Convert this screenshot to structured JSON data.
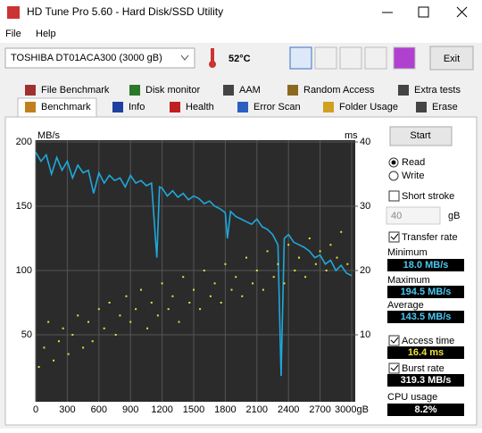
{
  "window": {
    "title": "HD Tune Pro 5.60 - Hard Disk/SSD Utility"
  },
  "menu": [
    "File",
    "Help"
  ],
  "toolbar": {
    "drive": "TOSHIBA DT01ACA300 (3000 gB)",
    "temperature": "52°C",
    "exit": "Exit"
  },
  "tabs": {
    "row1": [
      "File Benchmark",
      "Disk monitor",
      "AAM",
      "Random Access",
      "Extra tests"
    ],
    "row2": [
      "Benchmark",
      "Info",
      "Health",
      "Error Scan",
      "Folder Usage",
      "Erase"
    ]
  },
  "chart_data": {
    "type": "line",
    "y_unit": "MB/s",
    "y2_unit": "ms",
    "xlim": [
      0,
      3000
    ],
    "xticks": [
      0,
      300,
      600,
      900,
      1200,
      1500,
      1800,
      2100,
      2400,
      2700,
      {
        "value": 3000,
        "label": "3000gB"
      }
    ],
    "ylim": [
      0,
      200
    ],
    "yticks": [
      50,
      100,
      150,
      200
    ],
    "y2lim": [
      0,
      40
    ],
    "y2ticks": [
      10,
      20,
      30,
      40
    ],
    "grid": true,
    "series": [
      {
        "type": "line",
        "color": "#1fa8dc",
        "x": [
          0,
          50,
          100,
          150,
          200,
          250,
          300,
          350,
          400,
          450,
          500,
          550,
          600,
          650,
          700,
          750,
          800,
          850,
          900,
          950,
          1000,
          1050,
          1100,
          1150,
          1175,
          1200,
          1250,
          1300,
          1350,
          1400,
          1450,
          1500,
          1550,
          1600,
          1650,
          1700,
          1750,
          1800,
          1820,
          1850,
          1900,
          1950,
          2000,
          2050,
          2100,
          2150,
          2200,
          2250,
          2300,
          2330,
          2360,
          2400,
          2450,
          2500,
          2550,
          2600,
          2650,
          2700,
          2750,
          2800,
          2850,
          2900,
          2950,
          3000
        ],
        "values": [
          192,
          185,
          190,
          175,
          188,
          178,
          185,
          172,
          182,
          176,
          178,
          160,
          176,
          168,
          174,
          170,
          172,
          165,
          174,
          168,
          170,
          166,
          168,
          110,
          165,
          164,
          158,
          162,
          157,
          160,
          155,
          158,
          156,
          152,
          154,
          150,
          148,
          145,
          125,
          146,
          142,
          140,
          138,
          136,
          140,
          134,
          132,
          128,
          120,
          18,
          125,
          128,
          122,
          120,
          118,
          115,
          110,
          112,
          105,
          108,
          100,
          104,
          98,
          96
        ]
      },
      {
        "type": "scatter",
        "color": "#e6e03c",
        "axis": "y2",
        "x": [
          30,
          80,
          120,
          170,
          220,
          260,
          310,
          350,
          400,
          450,
          500,
          540,
          600,
          650,
          700,
          760,
          800,
          860,
          900,
          950,
          1000,
          1060,
          1100,
          1160,
          1200,
          1260,
          1300,
          1360,
          1400,
          1460,
          1500,
          1560,
          1600,
          1660,
          1700,
          1760,
          1800,
          1860,
          1900,
          1960,
          2000,
          2060,
          2100,
          2160,
          2200,
          2260,
          2300,
          2360,
          2400,
          2460,
          2500,
          2560,
          2600,
          2660,
          2700,
          2760,
          2800,
          2860,
          2900,
          2960
        ],
        "values": [
          5,
          8,
          12,
          6,
          9,
          11,
          7,
          10,
          13,
          8,
          12,
          9,
          14,
          11,
          15,
          10,
          13,
          16,
          12,
          14,
          17,
          11,
          15,
          13,
          18,
          14,
          16,
          12,
          19,
          15,
          17,
          14,
          20,
          16,
          18,
          15,
          21,
          17,
          19,
          16,
          22,
          18,
          20,
          17,
          23,
          19,
          21,
          18,
          24,
          20,
          22,
          19,
          25,
          21,
          23,
          20,
          24,
          22,
          26,
          21
        ]
      }
    ]
  },
  "panel": {
    "start": "Start",
    "read": "Read",
    "write": "Write",
    "short_stroke": "Short stroke",
    "stroke_value": 40,
    "stroke_unit": "gB",
    "transfer_rate": "Transfer rate",
    "minimum": {
      "label": "Minimum",
      "value": "18.0 MB/s"
    },
    "maximum": {
      "label": "Maximum",
      "value": "194.5 MB/s"
    },
    "average": {
      "label": "Average",
      "value": "143.5 MB/s"
    },
    "access_time": {
      "label": "Access time",
      "value": "16.4 ms"
    },
    "burst_rate": {
      "label": "Burst rate",
      "value": "319.3 MB/s"
    },
    "cpu_usage": {
      "label": "CPU usage",
      "value": "8.2%"
    }
  }
}
